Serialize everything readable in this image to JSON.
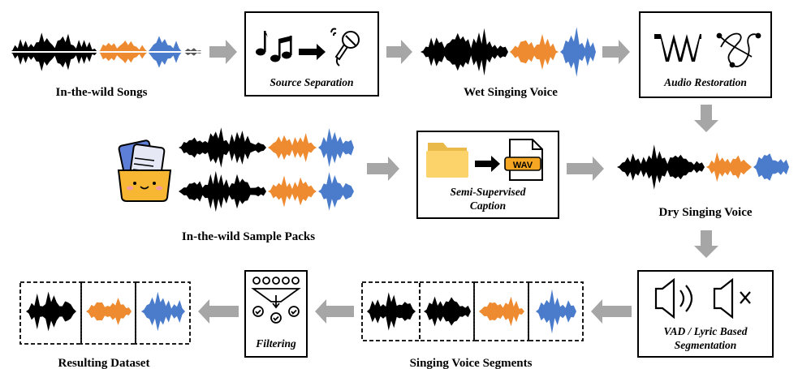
{
  "colors": {
    "black_wave": "#000000",
    "orange_wave": "#ee8a2f",
    "blue_wave": "#4b7ccc",
    "arrow": "#a6a6a6",
    "folder": "#fcd36a",
    "wav_icon": "#f5a623",
    "sample_pack": "#f7b733"
  },
  "labels": {
    "in_the_wild_songs": "In-the-wild Songs",
    "source_separation": "Source Separation",
    "wet_singing_voice": "Wet Singing Voice",
    "audio_restoration": "Audio Restoration",
    "in_the_wild_sample_packs": "In-the-wild Sample Packs",
    "semi_supervised_caption_line1": "Semi-Supervised",
    "semi_supervised_caption_line2": "Caption",
    "wav_text": "WAV",
    "dry_singing_voice": "Dry Singing Voice",
    "vad_line1": "VAD / Lyric Based",
    "vad_line2": "Segmentation",
    "singing_voice_segments": "Singing Voice Segments",
    "filtering": "Filtering",
    "resulting_dataset": "Resulting Dataset"
  },
  "icons": {
    "music_notes": "music-notes-icon",
    "microphone": "microphone-icon",
    "waveform_peaks": "waveform-peaks-icon",
    "restoration_curve": "restoration-curve-icon",
    "folder": "folder-icon",
    "wav_file": "wav-file-icon",
    "sample_pack": "sample-pack-icon",
    "speaker_on": "speaker-on-icon",
    "speaker_muted": "speaker-muted-icon",
    "filter_funnel": "filter-funnel-icon"
  }
}
